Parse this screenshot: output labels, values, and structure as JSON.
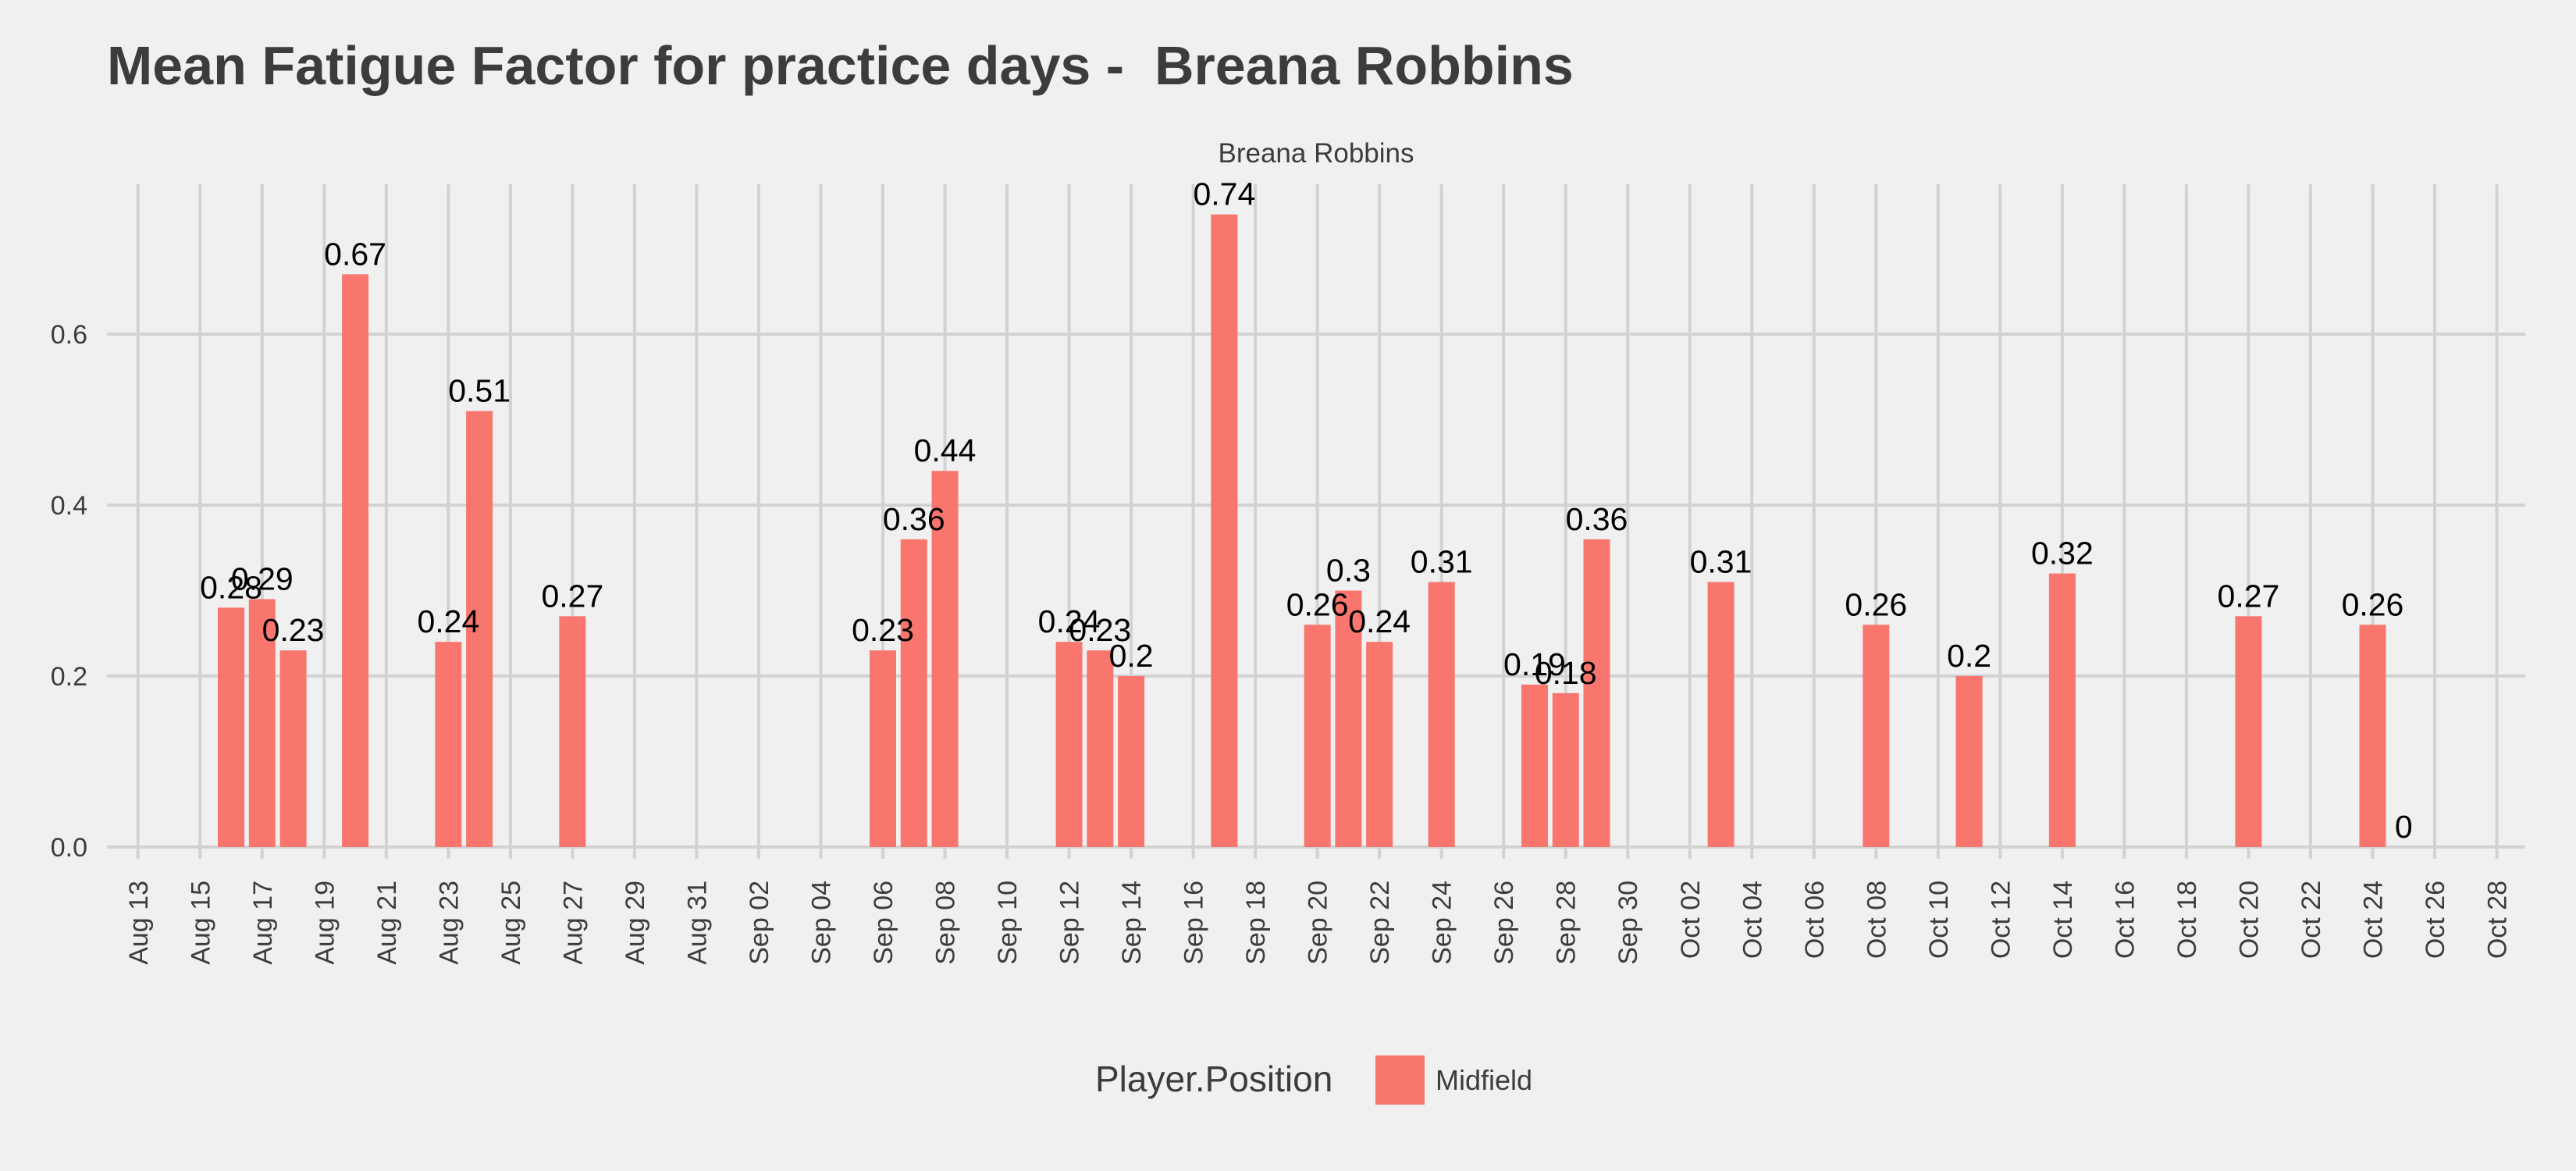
{
  "title": "Mean Fatigue Factor for practice days -  Breana Robbins",
  "chart_data": {
    "type": "bar",
    "title": "Mean Fatigue Factor for practice days -  Breana Robbins",
    "facet_label": "Breana Robbins",
    "xlabel": "",
    "ylabel": "",
    "x_axis": {
      "type": "date",
      "range": [
        "2019-08-12",
        "2019-10-28"
      ],
      "ticks": [
        {
          "date": "2019-08-13",
          "label": "Aug 13"
        },
        {
          "date": "2019-08-15",
          "label": "Aug 15"
        },
        {
          "date": "2019-08-17",
          "label": "Aug 17"
        },
        {
          "date": "2019-08-19",
          "label": "Aug 19"
        },
        {
          "date": "2019-08-21",
          "label": "Aug 21"
        },
        {
          "date": "2019-08-23",
          "label": "Aug 23"
        },
        {
          "date": "2019-08-25",
          "label": "Aug 25"
        },
        {
          "date": "2019-08-27",
          "label": "Aug 27"
        },
        {
          "date": "2019-08-29",
          "label": "Aug 29"
        },
        {
          "date": "2019-08-31",
          "label": "Aug 31"
        },
        {
          "date": "2019-09-02",
          "label": "Sep 02"
        },
        {
          "date": "2019-09-04",
          "label": "Sep 04"
        },
        {
          "date": "2019-09-06",
          "label": "Sep 06"
        },
        {
          "date": "2019-09-08",
          "label": "Sep 08"
        },
        {
          "date": "2019-09-10",
          "label": "Sep 10"
        },
        {
          "date": "2019-09-12",
          "label": "Sep 12"
        },
        {
          "date": "2019-09-14",
          "label": "Sep 14"
        },
        {
          "date": "2019-09-16",
          "label": "Sep 16"
        },
        {
          "date": "2019-09-18",
          "label": "Sep 18"
        },
        {
          "date": "2019-09-20",
          "label": "Sep 20"
        },
        {
          "date": "2019-09-22",
          "label": "Sep 22"
        },
        {
          "date": "2019-09-24",
          "label": "Sep 24"
        },
        {
          "date": "2019-09-26",
          "label": "Sep 26"
        },
        {
          "date": "2019-09-28",
          "label": "Sep 28"
        },
        {
          "date": "2019-09-30",
          "label": "Sep 30"
        },
        {
          "date": "2019-10-02",
          "label": "Oct 02"
        },
        {
          "date": "2019-10-04",
          "label": "Oct 04"
        },
        {
          "date": "2019-10-06",
          "label": "Oct 06"
        },
        {
          "date": "2019-10-08",
          "label": "Oct 08"
        },
        {
          "date": "2019-10-10",
          "label": "Oct 10"
        },
        {
          "date": "2019-10-12",
          "label": "Oct 12"
        },
        {
          "date": "2019-10-14",
          "label": "Oct 14"
        },
        {
          "date": "2019-10-16",
          "label": "Oct 16"
        },
        {
          "date": "2019-10-18",
          "label": "Oct 18"
        },
        {
          "date": "2019-10-20",
          "label": "Oct 20"
        },
        {
          "date": "2019-10-22",
          "label": "Oct 22"
        },
        {
          "date": "2019-10-24",
          "label": "Oct 24"
        },
        {
          "date": "2019-10-26",
          "label": "Oct 26"
        },
        {
          "date": "2019-10-28",
          "label": "Oct 28"
        }
      ]
    },
    "y_axis": {
      "range": [
        0,
        0.74
      ],
      "ticks": [
        {
          "value": 0.0,
          "label": "0.0"
        },
        {
          "value": 0.2,
          "label": "0.2"
        },
        {
          "value": 0.4,
          "label": "0.4"
        },
        {
          "value": 0.6,
          "label": "0.6"
        }
      ]
    },
    "grid": true,
    "legend": {
      "position": "bottom",
      "title": "Player.Position",
      "entries": [
        {
          "label": "Midfield",
          "color": "#f8766d"
        }
      ]
    },
    "series": [
      {
        "name": "Midfield",
        "color": "#f8766d",
        "points": [
          {
            "x": "2019-08-16",
            "y": 0.28,
            "label": "0.28"
          },
          {
            "x": "2019-08-17",
            "y": 0.29,
            "label": "0.29"
          },
          {
            "x": "2019-08-18",
            "y": 0.23,
            "label": "0.23"
          },
          {
            "x": "2019-08-20",
            "y": 0.67,
            "label": "0.67"
          },
          {
            "x": "2019-08-23",
            "y": 0.24,
            "label": "0.24"
          },
          {
            "x": "2019-08-24",
            "y": 0.51,
            "label": "0.51"
          },
          {
            "x": "2019-08-27",
            "y": 0.27,
            "label": "0.27"
          },
          {
            "x": "2019-09-06",
            "y": 0.23,
            "label": "0.23"
          },
          {
            "x": "2019-09-07",
            "y": 0.36,
            "label": "0.36"
          },
          {
            "x": "2019-09-08",
            "y": 0.44,
            "label": "0.44"
          },
          {
            "x": "2019-09-12",
            "y": 0.24,
            "label": "0.24"
          },
          {
            "x": "2019-09-13",
            "y": 0.23,
            "label": "0.23"
          },
          {
            "x": "2019-09-14",
            "y": 0.2,
            "label": "0.2"
          },
          {
            "x": "2019-09-17",
            "y": 0.74,
            "label": "0.74"
          },
          {
            "x": "2019-09-20",
            "y": 0.26,
            "label": "0.26"
          },
          {
            "x": "2019-09-21",
            "y": 0.3,
            "label": "0.3"
          },
          {
            "x": "2019-09-22",
            "y": 0.24,
            "label": "0.24"
          },
          {
            "x": "2019-09-24",
            "y": 0.31,
            "label": "0.31"
          },
          {
            "x": "2019-09-27",
            "y": 0.19,
            "label": "0.19"
          },
          {
            "x": "2019-09-28",
            "y": 0.18,
            "label": "0.18"
          },
          {
            "x": "2019-09-29",
            "y": 0.36,
            "label": "0.36"
          },
          {
            "x": "2019-10-03",
            "y": 0.31,
            "label": "0.31"
          },
          {
            "x": "2019-10-08",
            "y": 0.26,
            "label": "0.26"
          },
          {
            "x": "2019-10-11",
            "y": 0.2,
            "label": "0.2"
          },
          {
            "x": "2019-10-14",
            "y": 0.32,
            "label": "0.32"
          },
          {
            "x": "2019-10-20",
            "y": 0.27,
            "label": "0.27"
          },
          {
            "x": "2019-10-24",
            "y": 0.26,
            "label": "0.26"
          },
          {
            "x": "2019-10-25",
            "y": 0.0,
            "label": "0"
          }
        ]
      }
    ]
  }
}
